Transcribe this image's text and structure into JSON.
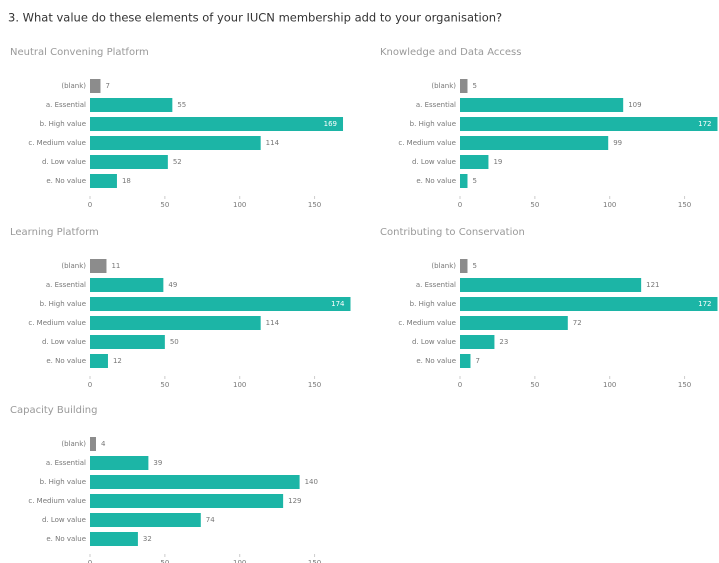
{
  "title": "3. What value do these elements of your IUCN membership add to your organisation?",
  "chart_data": [
    {
      "type": "bar",
      "orientation": "horizontal",
      "title": "Neutral Convening Platform",
      "categories": [
        "(blank)",
        "a. Essential",
        "b. High value",
        "c. Medium value",
        "d. Low value",
        "e. No value"
      ],
      "values": [
        7,
        55,
        169,
        114,
        52,
        18
      ],
      "colors": [
        "#8c8c8c",
        "#1cb5a6",
        "#1cb5a6",
        "#1cb5a6",
        "#1cb5a6",
        "#1cb5a6"
      ],
      "xlim": [
        0,
        175
      ],
      "xticks": [
        0,
        50,
        100,
        150
      ]
    },
    {
      "type": "bar",
      "orientation": "horizontal",
      "title": "Knowledge and Data Access",
      "categories": [
        "(blank)",
        "a. Essential",
        "b. High value",
        "c. Medium value",
        "d. Low value",
        "e. No value"
      ],
      "values": [
        5,
        109,
        172,
        99,
        19,
        5
      ],
      "colors": [
        "#8c8c8c",
        "#1cb5a6",
        "#1cb5a6",
        "#1cb5a6",
        "#1cb5a6",
        "#1cb5a6"
      ],
      "xlim": [
        0,
        175
      ],
      "xticks": [
        0,
        50,
        100,
        150
      ]
    },
    {
      "type": "bar",
      "orientation": "horizontal",
      "title": "Learning Platform",
      "categories": [
        "(blank)",
        "a. Essential",
        "b. High value",
        "c. Medium value",
        "d. Low value",
        "e. No value"
      ],
      "values": [
        11,
        49,
        174,
        114,
        50,
        12
      ],
      "colors": [
        "#8c8c8c",
        "#1cb5a6",
        "#1cb5a6",
        "#1cb5a6",
        "#1cb5a6",
        "#1cb5a6"
      ],
      "xlim": [
        0,
        175
      ],
      "xticks": [
        0,
        50,
        100,
        150
      ]
    },
    {
      "type": "bar",
      "orientation": "horizontal",
      "title": "Contributing to Conservation",
      "categories": [
        "(blank)",
        "a. Essential",
        "b. High value",
        "c. Medium value",
        "d. Low value",
        "e. No value"
      ],
      "values": [
        5,
        121,
        172,
        72,
        23,
        7
      ],
      "colors": [
        "#8c8c8c",
        "#1cb5a6",
        "#1cb5a6",
        "#1cb5a6",
        "#1cb5a6",
        "#1cb5a6"
      ],
      "xlim": [
        0,
        175
      ],
      "xticks": [
        0,
        50,
        100,
        150
      ]
    },
    {
      "type": "bar",
      "orientation": "horizontal",
      "title": "Capacity Building",
      "categories": [
        "(blank)",
        "a. Essential",
        "b. High value",
        "c. Medium value",
        "d. Low value",
        "e. No value"
      ],
      "values": [
        4,
        39,
        140,
        129,
        74,
        32
      ],
      "colors": [
        "#8c8c8c",
        "#1cb5a6",
        "#1cb5a6",
        "#1cb5a6",
        "#1cb5a6",
        "#1cb5a6"
      ],
      "xlim": [
        0,
        175
      ],
      "xticks": [
        0,
        50,
        100,
        150
      ]
    }
  ]
}
